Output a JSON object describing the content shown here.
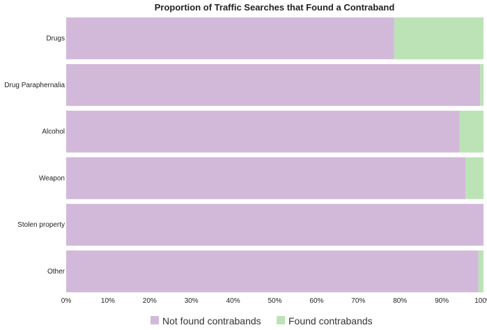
{
  "chart_data": {
    "type": "bar",
    "orientation": "horizontal",
    "stacked": true,
    "normalized": true,
    "title": "Proportion of Traffic Searches that Found a Contraband",
    "categories": [
      "Drugs",
      "Drug Paraphernalia",
      "Alcohol",
      "Weapon",
      "Stolen property",
      "Other"
    ],
    "series": [
      {
        "name": "Not found contrabands",
        "color": "#d2b9da",
        "values": [
          0.786,
          0.992,
          0.943,
          0.957,
          1.0,
          0.988
        ]
      },
      {
        "name": "Found contrabands",
        "color": "#bce3b6",
        "values": [
          0.214,
          0.008,
          0.057,
          0.043,
          0.0,
          0.012
        ]
      }
    ],
    "xlim": [
      0,
      1
    ],
    "x_ticks": [
      "0%",
      "10%",
      "20%",
      "30%",
      "40%",
      "50%",
      "60%",
      "70%",
      "80%",
      "90%",
      "100%"
    ],
    "legend": "bottom",
    "grid": false
  }
}
